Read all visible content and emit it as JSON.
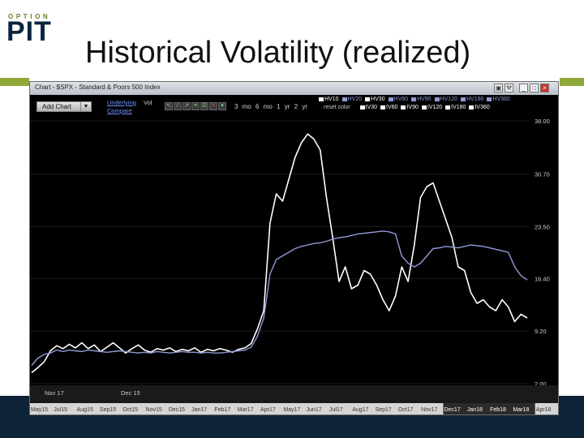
{
  "logo": {
    "top": "OPTION",
    "main": "PIT"
  },
  "slide": {
    "title": "Historical Volatility (realized)"
  },
  "window": {
    "title": "Chart - $SPX - Standard & Poors 500 Index",
    "buttons": [
      "camera-icon",
      "wrench-icon",
      "minimize-icon",
      "maximize-icon",
      "close-icon"
    ]
  },
  "toolbar": {
    "add_chart": "Add Chart",
    "underlying_link": "Underlying",
    "vol_label": "Vol",
    "compare_link": "Compare",
    "ranges": [
      "3 mo",
      "6 mo",
      "1 yr",
      "2 yr"
    ]
  },
  "legend": {
    "row1": [
      {
        "label": "HV10",
        "color": "#ffffff"
      },
      {
        "label": "HV20",
        "color": "#8f9bd6"
      },
      {
        "label": "HV30",
        "color": "#ffffff"
      },
      {
        "label": "HV60",
        "color": "#8f9bd6"
      },
      {
        "label": "HV90",
        "color": "#8f9bd6"
      },
      {
        "label": "HV120",
        "color": "#8f9bd6"
      },
      {
        "label": "HV180",
        "color": "#8f9bd6"
      },
      {
        "label": "HV360",
        "color": "#8f9bd6"
      }
    ],
    "reset": "reset color",
    "row2": [
      {
        "label": "IV30",
        "color": "#ffffff"
      },
      {
        "label": "IV60",
        "color": "#ffffff"
      },
      {
        "label": "IV90",
        "color": "#ffffff"
      },
      {
        "label": "IV120",
        "color": "#ffffff"
      },
      {
        "label": "IV180",
        "color": "#ffffff"
      },
      {
        "label": "IV360",
        "color": "#ffffff"
      }
    ]
  },
  "chart_data": {
    "type": "line",
    "yticks": [
      "38.00",
      "30.70",
      "23.50",
      "16.40",
      "9.20",
      "2.00"
    ],
    "ylim": [
      2.0,
      38.0
    ],
    "x_inner_labels": [
      "Nov 17",
      "Dec 15"
    ],
    "timeline_labels": [
      "May15",
      "Jul15",
      "Aug15",
      "Sep15",
      "Oct15",
      "Nov15",
      "Dec15",
      "Jan17",
      "Feb17",
      "Mar17",
      "Apr17",
      "May17",
      "Jun17",
      "Jul17",
      "Aug17",
      "Sep17",
      "Oct17",
      "Nov17",
      "Dec17",
      "Jan18",
      "Feb18",
      "Mar18",
      "Apr18"
    ],
    "timeline_highlight": [
      18,
      21
    ],
    "series": [
      {
        "color": "#ffffff",
        "values": [
          3.5,
          4.2,
          5.0,
          6.5,
          7.2,
          6.8,
          7.4,
          6.9,
          7.6,
          6.8,
          7.3,
          6.4,
          7.0,
          7.6,
          6.9,
          6.2,
          6.8,
          7.3,
          6.6,
          6.3,
          6.8,
          6.6,
          6.9,
          6.4,
          6.7,
          6.5,
          6.9,
          6.3,
          6.7,
          6.5,
          6.8,
          6.6,
          6.3,
          6.7,
          6.9,
          7.5,
          9.5,
          12.0,
          24.0,
          28.0,
          27.0,
          30.0,
          33.0,
          35.0,
          36.2,
          35.5,
          34.0,
          27.5,
          22.0,
          16.0,
          18.0,
          15.0,
          15.5,
          17.5,
          17.0,
          15.5,
          13.5,
          12.0,
          14.0,
          18.0,
          16.0,
          21.0,
          27.5,
          29.0,
          29.5,
          27.0,
          24.5,
          22.0,
          18.0,
          17.5,
          14.5,
          13.0,
          13.5,
          12.5,
          12.0,
          13.5,
          12.5,
          10.5,
          11.5,
          11.0
        ]
      },
      {
        "color": "#8f9bd6",
        "values": [
          4.5,
          5.5,
          6.0,
          6.2,
          6.6,
          6.4,
          6.6,
          6.5,
          6.4,
          6.6,
          6.5,
          6.4,
          6.3,
          6.4,
          6.5,
          6.4,
          6.3,
          6.2,
          6.3,
          6.2,
          6.4,
          6.3,
          6.2,
          6.3,
          6.4,
          6.3,
          6.3,
          6.2,
          6.3,
          6.2,
          6.2,
          6.3,
          6.4,
          6.5,
          6.6,
          7.0,
          8.5,
          11.0,
          17.0,
          19.0,
          19.5,
          20.0,
          20.5,
          20.8,
          21.0,
          21.2,
          21.3,
          21.5,
          21.8,
          22.0,
          22.1,
          22.3,
          22.5,
          22.6,
          22.7,
          22.8,
          22.9,
          22.8,
          22.5,
          19.5,
          18.5,
          18.0,
          18.5,
          19.5,
          20.5,
          20.6,
          20.8,
          20.7,
          20.6,
          20.8,
          21.0,
          20.9,
          20.8,
          20.6,
          20.4,
          20.2,
          20.0,
          18.0,
          16.8,
          16.2
        ]
      }
    ]
  }
}
